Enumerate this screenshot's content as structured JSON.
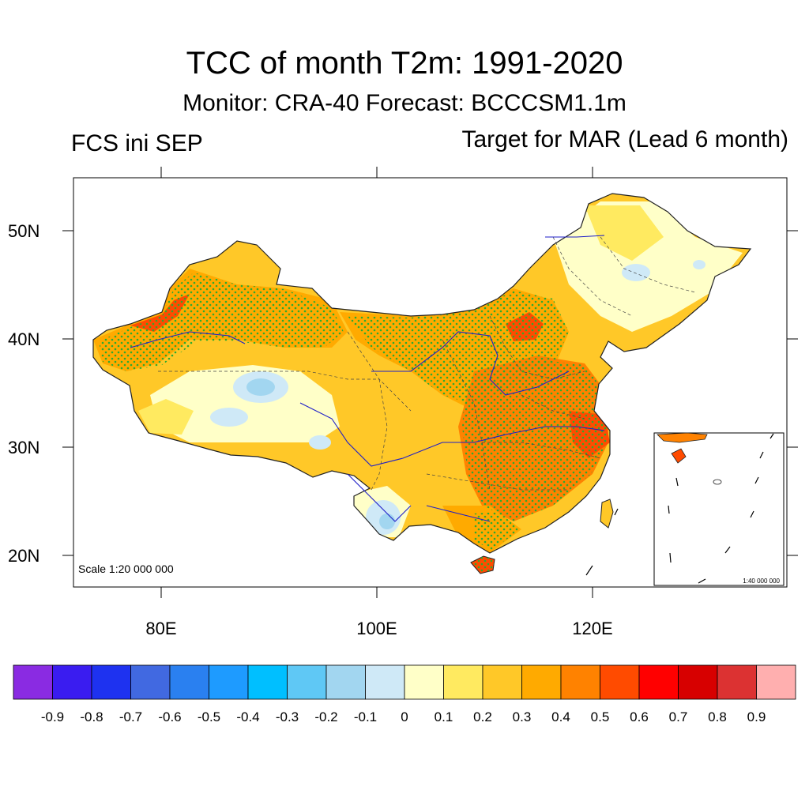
{
  "title": "TCC of month T2m: 1991-2020",
  "subtitle": "Monitor: CRA-40   Forecast: BCCCSM1.1m",
  "left_label": "FCS ini SEP",
  "right_label": "Target for MAR (Lead 6 month)",
  "scale_main": "Scale 1:20 000 000",
  "scale_inset": "1:40 000 000",
  "lat_ticks": [
    "50N",
    "40N",
    "30N",
    "20N"
  ],
  "lon_ticks": [
    "80E",
    "100E",
    "120E"
  ],
  "colorbar": {
    "colors": [
      "#8a2be2",
      "#3a1cf0",
      "#1e32f0",
      "#4169e1",
      "#2a80f0",
      "#1e9bff",
      "#00bfff",
      "#5fc8f5",
      "#a2d6f0",
      "#cfe9f7",
      "#ffffc8",
      "#ffea60",
      "#ffc828",
      "#ffaa00",
      "#ff8200",
      "#ff4b00",
      "#ff0000",
      "#d70000",
      "#dc3232",
      "#ffafaf"
    ],
    "labels": [
      "-0.9",
      "-0.8",
      "-0.7",
      "-0.6",
      "-0.5",
      "-0.4",
      "-0.3",
      "-0.2",
      "-0.1",
      "0",
      "0.1",
      "0.2",
      "0.3",
      "0.4",
      "0.5",
      "0.6",
      "0.7",
      "0.8",
      "0.9"
    ]
  },
  "colors": {
    "stipple": "#2eaa2e",
    "river": "#1e1ec8",
    "boundary": "#222222"
  }
}
